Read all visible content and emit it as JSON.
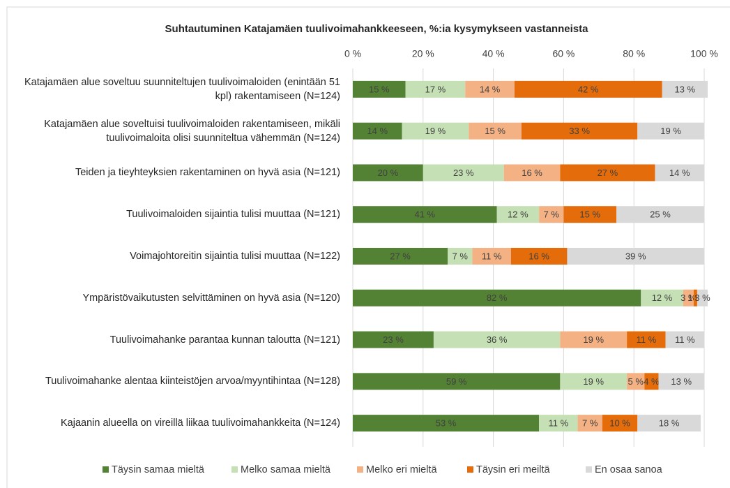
{
  "chart_data": {
    "type": "stacked-barh",
    "title": "Suhtautuminen Katajamäen tuulivoimahankkeeseen, %:ia kysymykseen vastanneista",
    "categories": [
      "Katajamäen alue soveltuu suunniteltujen tuulivoimaloiden (enintään 51 kpl) rakentamiseen (N=124)",
      "Katajamäen alue soveltuisi tuulivoimaloiden rakentamiseen, mikäli tuulivoimaloita olisi suunniteltua vähemmän (N=124)",
      "Teiden ja tieyhteyksien rakentaminen on hyvä asia (N=121)",
      "Tuulivoimaloiden sijaintia tulisi muuttaa (N=121)",
      "Voimajohtoreitin sijaintia tulisi muuttaa (N=122)",
      "Ympäristövaikutusten selvittäminen on hyvä asia (N=120)",
      "Tuulivoimahanke parantaa kunnan taloutta (N=121)",
      "Tuulivoimahanke alentaa kiinteistöjen arvoa/myyntihintaa (N=128)",
      "Kajaanin alueella on vireillä liikaa tuulivoimahankkeita (N=124)"
    ],
    "series": [
      {
        "name": "Täysin samaa mieltä",
        "color": "#548235",
        "values": [
          15,
          14,
          20,
          41,
          27,
          82,
          23,
          59,
          53
        ],
        "value_labels": [
          "15 %",
          "14 %",
          "20 %",
          "41 %",
          "27 %",
          "82 %",
          "23 %",
          "59 %",
          "53 %"
        ]
      },
      {
        "name": "Melko samaa mieltä",
        "color": "#c5e0b4",
        "values": [
          17,
          19,
          23,
          12,
          7,
          12,
          36,
          19,
          11
        ],
        "value_labels": [
          "17 %",
          "19 %",
          "23 %",
          "12 %",
          "7 %",
          "12 %",
          "36 %",
          "19 %",
          "11 %"
        ]
      },
      {
        "name": "Melko eri mieltä",
        "color": "#f4b183",
        "values": [
          14,
          15,
          16,
          7,
          11,
          3,
          19,
          5,
          7
        ],
        "value_labels": [
          "14 %",
          "15 %",
          "16 %",
          "7 %",
          "11 %",
          "3 %",
          "19 %",
          "5 %",
          "7 %"
        ]
      },
      {
        "name": "Täysin eri meiltä",
        "color": "#e46c0a",
        "values": [
          42,
          33,
          27,
          15,
          16,
          1,
          11,
          4,
          10
        ],
        "value_labels": [
          "42 %",
          "33 %",
          "27 %",
          "15 %",
          "16 %",
          "1 %",
          "11 %",
          "4 %",
          "10 %"
        ]
      },
      {
        "name": "En osaa sanoa",
        "color": "#d9d9d9",
        "values": [
          13,
          19,
          14,
          25,
          39,
          3,
          11,
          13,
          18
        ],
        "value_labels": [
          "13 %",
          "19 %",
          "14 %",
          "25 %",
          "39 %",
          "3 %",
          "11 %",
          "13 %",
          "18 %"
        ]
      }
    ],
    "xlim": [
      0,
      100
    ],
    "xticks": [
      {
        "value": 0,
        "label": "0 %"
      },
      {
        "value": 20,
        "label": "20 %"
      },
      {
        "value": 40,
        "label": "40 %"
      },
      {
        "value": 60,
        "label": "60 %"
      },
      {
        "value": 80,
        "label": "80 %"
      },
      {
        "value": 100,
        "label": "100 %"
      }
    ],
    "grid": true,
    "legend": "bottom"
  }
}
